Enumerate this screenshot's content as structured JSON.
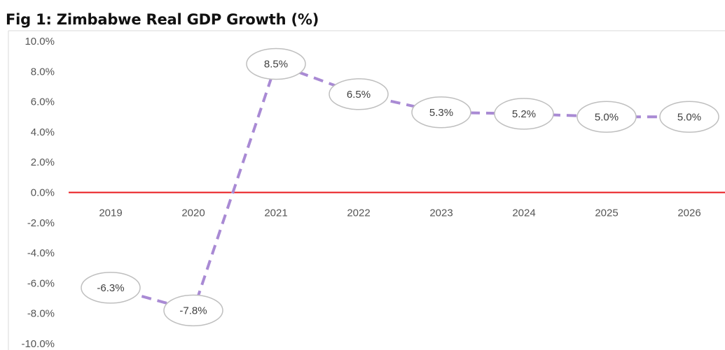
{
  "title": "Fig 1: Zimbabwe Real GDP Growth (%)",
  "chart_data": {
    "type": "line",
    "title": "Fig 1: Zimbabwe Real GDP Growth (%)",
    "categories": [
      "2019",
      "2020",
      "2021",
      "2022",
      "2023",
      "2024",
      "2025",
      "2026"
    ],
    "series": [
      {
        "values": [
          -6.3,
          -7.8,
          8.5,
          6.5,
          5.3,
          5.2,
          5.0,
          5.0
        ]
      }
    ],
    "data_labels": [
      "-6.3%",
      "-7.8%",
      "8.5%",
      "6.5%",
      "5.3%",
      "5.2%",
      "5.0%",
      "5.0%"
    ],
    "y_ticks": [
      "10.0%",
      "8.0%",
      "6.0%",
      "4.0%",
      "2.0%",
      "0.0%",
      "-2.0%",
      "-4.0%",
      "-6.0%",
      "-8.0%",
      "-10.0%"
    ],
    "ylim": [
      -10,
      10
    ],
    "grid": false,
    "legend": "none",
    "colors": {
      "line": "#a98ad4",
      "zero_line": "#e8171b",
      "label_border": "#bfbfbf",
      "axis": "#d9d9d9"
    }
  }
}
